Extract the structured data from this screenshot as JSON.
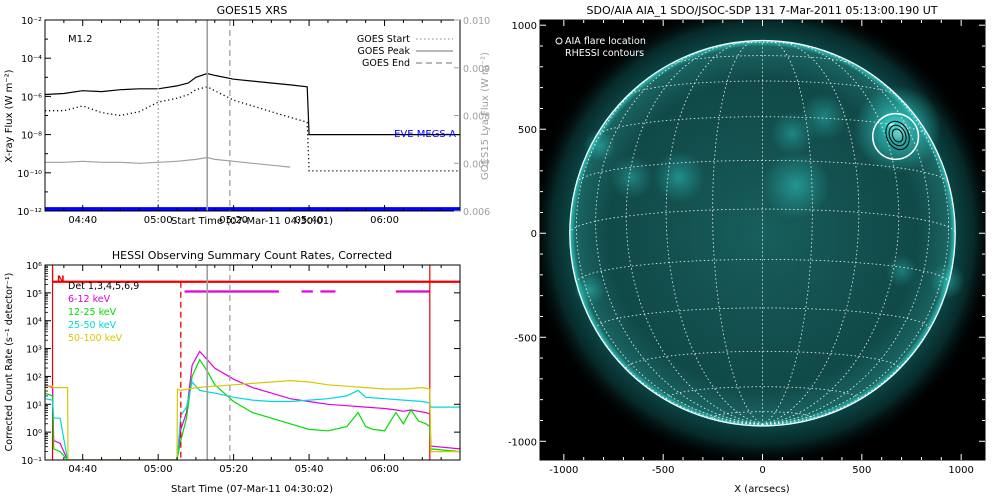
{
  "chart_data": [
    {
      "type": "line",
      "title": "GOES15 XRS",
      "xlabel": "Start Time (07-Mar-11 04:30:01)",
      "ylabel": "X-ray Flux (W m⁻²)",
      "y2label": "GOES15 Lya Flux (W m⁻²)",
      "x_unit": "minutes after 04:30",
      "xlim": [
        0,
        110
      ],
      "ylim_log10": [
        -12,
        -2
      ],
      "y2lim": [
        0.006,
        0.01
      ],
      "x_ticks": [
        "04:40",
        "05:00",
        "05:20",
        "05:40",
        "06:00"
      ],
      "y_ticks": [
        "10⁻¹²",
        "10⁻¹⁰",
        "10⁻⁸",
        "10⁻⁶",
        "10⁻⁴",
        "10⁻²"
      ],
      "y2_ticks": [
        "0.006",
        "0.007",
        "0.008",
        "0.009",
        "0.010"
      ],
      "flare_class": "M1.2",
      "legend": {
        "position": "top-right",
        "entries": [
          {
            "name": "GOES Start",
            "style": "dotted",
            "color": "#a0a0a0"
          },
          {
            "name": "GOES Peak",
            "style": "solid",
            "color": "#a0a0a0"
          },
          {
            "name": "GOES End",
            "style": "dashed",
            "color": "#a0a0a0"
          }
        ]
      },
      "markers": [
        {
          "name": "GOES Start",
          "x": 30,
          "style": "dotted"
        },
        {
          "name": "GOES Peak",
          "x": 43,
          "style": "solid"
        },
        {
          "name": "GOES End",
          "x": 49,
          "style": "dashed"
        }
      ],
      "annotation": "EVE MEGS-A",
      "series": [
        {
          "color": "#000000",
          "style": "solid",
          "x": [
            0,
            5,
            10,
            15,
            20,
            25,
            30,
            35,
            38,
            40,
            43,
            45,
            50,
            55,
            60,
            65,
            69.5,
            70,
            110
          ],
          "log10_y": [
            -5.9,
            -5.85,
            -5.7,
            -5.75,
            -5.65,
            -5.6,
            -5.6,
            -5.45,
            -5.3,
            -5.0,
            -4.8,
            -4.9,
            -5.1,
            -5.2,
            -5.3,
            -5.4,
            -5.5,
            -8.0,
            -8.0
          ]
        },
        {
          "color": "#000000",
          "style": "dotted",
          "x": [
            0,
            5,
            10,
            15,
            20,
            25,
            30,
            35,
            38,
            40,
            43,
            45,
            50,
            55,
            60,
            65,
            69.5,
            70,
            110
          ],
          "log10_y": [
            -6.75,
            -6.75,
            -6.5,
            -6.85,
            -7.0,
            -6.8,
            -6.3,
            -6.1,
            -5.9,
            -5.65,
            -5.5,
            -5.7,
            -6.2,
            -6.5,
            -6.8,
            -7.1,
            -7.35,
            -9.9,
            -9.9
          ]
        },
        {
          "color": "#a0a0a0",
          "style": "solid",
          "x": [
            0,
            5,
            10,
            15,
            20,
            25,
            30,
            35,
            40,
            43,
            45,
            50,
            55,
            60,
            65
          ],
          "log10_y": [
            -9.45,
            -9.45,
            -9.4,
            -9.45,
            -9.45,
            -9.5,
            -9.45,
            -9.4,
            -9.3,
            -9.2,
            -9.3,
            -9.4,
            -9.5,
            -9.6,
            -9.7
          ]
        },
        {
          "color": "#0000ff",
          "style": "solid",
          "x": [
            0,
            110
          ],
          "log10_y": [
            -11.9,
            -11.9
          ]
        }
      ]
    },
    {
      "type": "line",
      "title": "HESSI Observing Summary Count Rates, Corrected",
      "xlabel": "Start Time (07-Mar-11 04:30:02)",
      "ylabel": "Corrected Count Rate (s⁻¹ detector⁻¹)",
      "x_unit": "minutes after 04:30",
      "xlim": [
        0,
        110
      ],
      "ylim_log10": [
        -1,
        6
      ],
      "x_ticks": [
        "04:40",
        "05:00",
        "05:20",
        "05:40",
        "06:00"
      ],
      "y_ticks": [
        "10⁻¹",
        "10⁰",
        "10¹",
        "10²",
        "10³",
        "10⁴",
        "10⁵",
        "10⁶"
      ],
      "night_label": "N",
      "legend": {
        "position": "top-left",
        "entries": [
          {
            "name": "Det 1,3,4,5,6,9",
            "color": "#000000"
          },
          {
            "name": "6-12 keV",
            "color": "#e000e0"
          },
          {
            "name": "12-25 keV",
            "color": "#00dd00"
          },
          {
            "name": "25-50 keV",
            "color": "#00d8d8"
          },
          {
            "name": "50-100 keV",
            "color": "#d8c800"
          }
        ]
      },
      "markers": [
        {
          "x": 36,
          "style": "dashed",
          "color": "#ee0000"
        },
        {
          "x": 43,
          "style": "solid",
          "color": "#a0a0a0"
        },
        {
          "x": 49,
          "style": "dashed",
          "color": "#a0a0a0"
        }
      ],
      "state_bars": [
        {
          "color": "#ee0000",
          "log10_y": 5.4,
          "segments": [
            [
              2,
              102
            ],
            [
              102,
              110
            ]
          ]
        },
        {
          "color": "#e000e0",
          "log10_y": 5.05,
          "segments": [
            [
              37,
              62
            ],
            [
              68,
              71
            ],
            [
              73,
              77
            ],
            [
              93,
              102
            ]
          ]
        }
      ],
      "series": [
        {
          "name": "6-12 keV",
          "color": "#e000e0",
          "x": [
            0,
            2,
            2.3,
            4,
            6,
            35,
            36,
            37.5,
            39,
            41,
            43,
            45,
            50,
            55,
            60,
            65,
            70,
            75,
            80,
            85,
            90,
            93,
            95,
            97,
            99,
            101,
            102,
            102.3,
            110
          ],
          "log10_y": [
            1.7,
            1.6,
            -0.3,
            -0.4,
            -1,
            -1,
            0.1,
            0.7,
            2.4,
            2.9,
            2.6,
            2.3,
            1.9,
            1.6,
            1.4,
            1.2,
            1.1,
            1.0,
            0.95,
            0.9,
            0.85,
            0.8,
            0.75,
            0.8,
            0.75,
            0.7,
            0.65,
            -0.5,
            -0.6
          ]
        },
        {
          "name": "12-25 keV",
          "color": "#00dd00",
          "x": [
            0,
            2,
            2.3,
            4,
            6,
            35,
            36,
            37.5,
            39,
            41,
            43,
            45,
            50,
            55,
            60,
            65,
            70,
            75,
            80,
            83,
            85,
            87,
            90,
            93,
            95,
            97,
            99,
            101,
            102,
            102.3,
            110
          ],
          "log10_y": [
            1.4,
            1.3,
            -0.6,
            -0.7,
            -1,
            -1,
            -0.3,
            0.5,
            2.0,
            2.6,
            2.2,
            1.7,
            1.1,
            0.7,
            0.5,
            0.3,
            0.1,
            0.05,
            0.2,
            0.7,
            0.2,
            0.1,
            0.05,
            0.7,
            0.3,
            0.8,
            0.4,
            0.3,
            0.2,
            -0.6,
            -0.7
          ]
        },
        {
          "name": "25-50 keV",
          "color": "#00d8d8",
          "x": [
            0,
            2,
            2.3,
            4,
            6,
            35,
            36,
            37.5,
            39,
            41,
            43,
            45,
            50,
            55,
            60,
            65,
            70,
            75,
            80,
            83,
            85,
            90,
            95,
            100,
            102,
            102.3,
            110
          ],
          "log10_y": [
            1.2,
            1.15,
            0.5,
            0.5,
            -1,
            -1,
            0.6,
            0.9,
            1.8,
            1.5,
            1.45,
            1.4,
            1.25,
            1.15,
            1.1,
            1.1,
            1.15,
            1.2,
            1.3,
            1.5,
            1.25,
            1.2,
            1.15,
            1.1,
            1.05,
            0.9,
            0.9
          ]
        },
        {
          "name": "50-100 keV",
          "color": "#d8c800",
          "x": [
            0,
            2,
            2.1,
            6,
            6.1,
            35,
            35.1,
            36,
            40,
            45,
            50,
            55,
            60,
            65,
            70,
            75,
            80,
            85,
            90,
            95,
            100,
            102,
            102.3,
            110
          ],
          "log10_y": [
            1.65,
            1.65,
            1.6,
            1.6,
            -1,
            -1,
            1.55,
            1.5,
            1.6,
            1.65,
            1.7,
            1.75,
            1.8,
            1.85,
            1.8,
            1.7,
            1.65,
            1.6,
            1.55,
            1.55,
            1.6,
            1.55,
            -0.7,
            -0.7
          ]
        }
      ]
    },
    {
      "type": "scatter",
      "title": "SDO/AIA AIA_1 SDO/JSOC-SDP 131  7-Mar-2011 05:13:00.190 UT",
      "xlabel": "X (arcsecs)",
      "ylabel": "",
      "xlim": [
        -1120,
        1120
      ],
      "ylim": [
        -1090,
        1025
      ],
      "x_ticks": [
        -1000,
        -500,
        0,
        500,
        1000
      ],
      "y_ticks": [
        -1000,
        -500,
        0,
        500,
        1000
      ],
      "solar_radius_arcsec": 970,
      "colormap": [
        "#000000",
        "#0d4b4b",
        "#2fc8c2",
        "#c8fff8"
      ],
      "legend": {
        "position": "top-left",
        "entries": [
          {
            "name": "AIA flare location",
            "marker": "open-circle"
          },
          {
            "name": "RHESSI contours",
            "marker": "contour"
          }
        ]
      },
      "flare_location": {
        "x": 670,
        "y": 465,
        "circle_radius_arcsec": 115
      },
      "rhessi_contours": {
        "x": 680,
        "y": 470,
        "radii_arcsec": [
          25,
          40,
          55
        ]
      },
      "bright_regions": [
        {
          "x": 680,
          "y": 500,
          "r": 220,
          "level": 0.7
        },
        {
          "x": 650,
          "y": 520,
          "r": 70,
          "level": 1.0
        },
        {
          "x": 310,
          "y": 560,
          "r": 120,
          "level": 0.45
        },
        {
          "x": 150,
          "y": 480,
          "r": 110,
          "level": 0.45
        },
        {
          "x": 170,
          "y": 230,
          "r": 170,
          "level": 0.6
        },
        {
          "x": -420,
          "y": 270,
          "r": 130,
          "level": 0.55
        },
        {
          "x": -660,
          "y": 270,
          "r": 110,
          "level": 0.45
        },
        {
          "x": -820,
          "y": 420,
          "r": 80,
          "level": 0.5
        },
        {
          "x": -870,
          "y": -270,
          "r": 80,
          "level": 0.5
        },
        {
          "x": 930,
          "y": -230,
          "r": 90,
          "level": 0.55
        },
        {
          "x": 700,
          "y": -180,
          "r": 80,
          "level": 0.4
        },
        {
          "x": 0,
          "y": 0,
          "r": 900,
          "level": 0.18
        }
      ]
    }
  ]
}
